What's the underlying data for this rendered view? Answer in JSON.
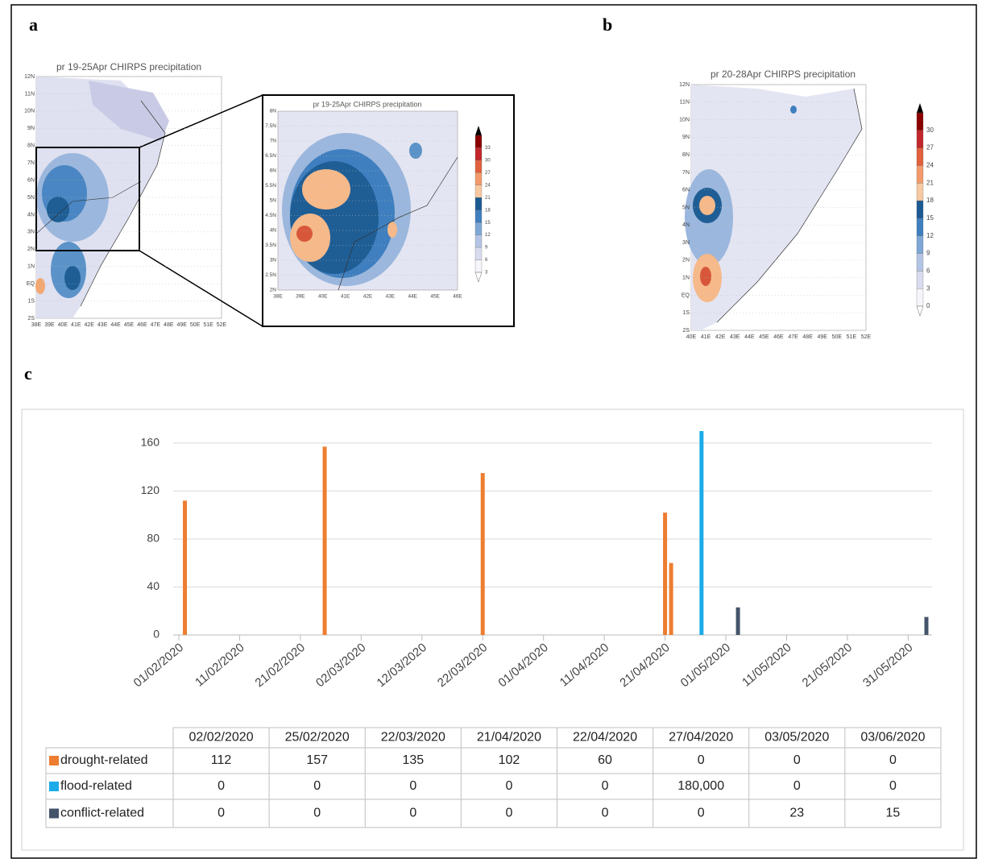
{
  "panels": {
    "a": "a",
    "b": "b",
    "c": "c"
  },
  "maps": [
    {
      "title": "pr 19-25Apr CHIRPS precipitation",
      "lat_labels": [
        "12N",
        "11N",
        "10N",
        "9N",
        "8N",
        "7N",
        "6N",
        "5N",
        "4N",
        "3N",
        "2N",
        "1N",
        "EQ",
        "1S",
        "2S"
      ],
      "lon_labels": [
        "38E",
        "39E",
        "40E",
        "41E",
        "42E",
        "43E",
        "44E",
        "45E",
        "46E",
        "47E",
        "48E",
        "49E",
        "50E",
        "51E",
        "52E"
      ]
    },
    {
      "title": "pr 19-25Apr CHIRPS precipitation",
      "lat_labels": [
        "8N",
        "7.5N",
        "7N",
        "6.5N",
        "6N",
        "5.5N",
        "5N",
        "4.5N",
        "4N",
        "3.5N",
        "3N",
        "2.5N",
        "2N"
      ],
      "lon_labels": [
        "38E",
        "39E",
        "40E",
        "41E",
        "42E",
        "43E",
        "44E",
        "45E",
        "46E"
      ],
      "colorbar": [
        "33",
        "30",
        "27",
        "24",
        "21",
        "18",
        "15",
        "12",
        "9",
        "6",
        "3"
      ]
    },
    {
      "title": "pr 20-28Apr CHIRPS precipitation",
      "lat_labels": [
        "12N",
        "11N",
        "10N",
        "9N",
        "8N",
        "7N",
        "6N",
        "5N",
        "4N",
        "3N",
        "2N",
        "1N",
        "EQ",
        "1S",
        "2S"
      ],
      "lon_labels": [
        "40E",
        "41E",
        "42E",
        "43E",
        "44E",
        "45E",
        "46E",
        "47E",
        "48E",
        "49E",
        "50E",
        "51E",
        "52E"
      ],
      "colorbar": [
        "30",
        "27",
        "24",
        "21",
        "18",
        "15",
        "12",
        "9",
        "6",
        "3",
        "0"
      ]
    }
  ],
  "chart_data": {
    "type": "bar",
    "x": [
      "02/02/2020",
      "25/02/2020",
      "22/03/2020",
      "21/04/2020",
      "22/04/2020",
      "27/04/2020",
      "03/05/2020",
      "03/06/2020"
    ],
    "series": [
      {
        "name": "drought-related",
        "color": "#ed7d31",
        "values": [
          112,
          157,
          135,
          102,
          60,
          0,
          0,
          0
        ]
      },
      {
        "name": "flood-related",
        "color": "#1aabe8",
        "values": [
          0,
          0,
          0,
          0,
          0,
          180000,
          0,
          0
        ],
        "value_labels": [
          "0",
          "0",
          "0",
          "0",
          "0",
          "180,000",
          "0",
          "0"
        ]
      },
      {
        "name": "conflict-related",
        "color": "#44546a",
        "values": [
          0,
          0,
          0,
          0,
          0,
          0,
          23,
          15
        ]
      }
    ],
    "xlim": [
      "01/02/2020",
      "03/06/2020"
    ],
    "xticks": [
      "01/02/2020",
      "11/02/2020",
      "21/02/2020",
      "02/03/2020",
      "12/03/2020",
      "22/03/2020",
      "01/04/2020",
      "11/04/2020",
      "21/04/2020",
      "01/05/2020",
      "11/05/2020",
      "21/05/2020",
      "31/05/2020"
    ],
    "ylim": [
      0,
      170
    ],
    "yticks": [
      0,
      40,
      80,
      120,
      160
    ],
    "grid": true
  }
}
